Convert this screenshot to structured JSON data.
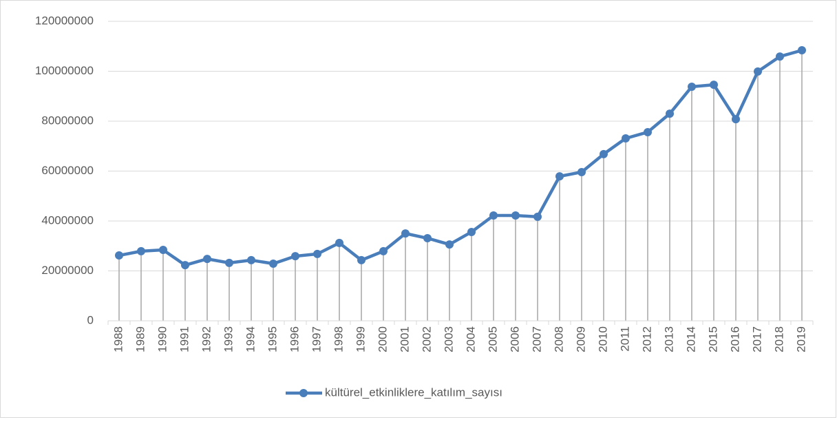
{
  "chart_data": {
    "type": "line",
    "categories": [
      "1988",
      "1989",
      "1990",
      "1991",
      "1992",
      "1993",
      "1994",
      "1995",
      "1996",
      "1997",
      "1998",
      "1999",
      "2000",
      "2001",
      "2002",
      "2003",
      "2004",
      "2005",
      "2006",
      "2007",
      "2008",
      "2009",
      "2010",
      "2011",
      "2012",
      "2013",
      "2014",
      "2015",
      "2016",
      "2017",
      "2018",
      "2019"
    ],
    "series": [
      {
        "name": "kültürel_etkinliklere_katılım_sayısı",
        "color": "#4a7ebb",
        "values": [
          26200000,
          27900000,
          28400000,
          22300000,
          24800000,
          23200000,
          24300000,
          22900000,
          25900000,
          26800000,
          31200000,
          24300000,
          27900000,
          35000000,
          33100000,
          30600000,
          35600000,
          42200000,
          42200000,
          41700000,
          57900000,
          59600000,
          66800000,
          73100000,
          75600000,
          83000000,
          93800000,
          94600000,
          80800000,
          99900000,
          105900000,
          108400000
        ]
      }
    ],
    "ylim": [
      0,
      120000000
    ],
    "yticks": [
      0,
      20000000,
      40000000,
      60000000,
      80000000,
      100000000,
      120000000
    ],
    "grid": true,
    "drop_lines": true,
    "legend": "bottom"
  }
}
